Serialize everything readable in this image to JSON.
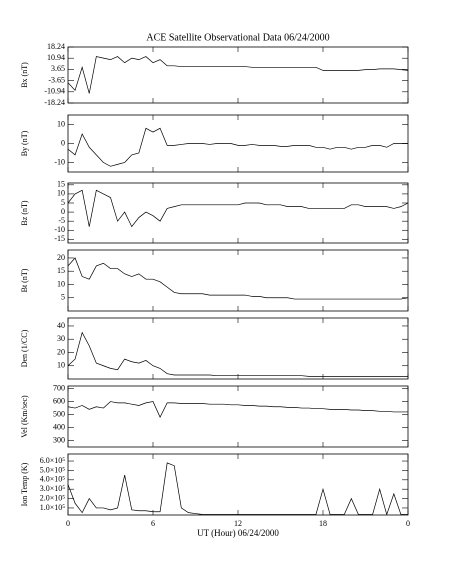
{
  "chart_data": [
    {
      "type": "line",
      "title": "ACE Satellite Observational Data  06/24/2000",
      "ylabel": "Bx (nT)",
      "xlim": [
        0,
        24
      ],
      "x": [
        0,
        0.5,
        1,
        1.5,
        2,
        2.5,
        3,
        3.5,
        4,
        4.5,
        5,
        5.5,
        6,
        6.5,
        7,
        7.5,
        8,
        8.5,
        9,
        9.5,
        10,
        10.5,
        11,
        11.5,
        12,
        12.5,
        13,
        13.5,
        14,
        14.5,
        15,
        15.5,
        16,
        16.5,
        17,
        17.5,
        18,
        18.5,
        19,
        19.5,
        20,
        20.5,
        21,
        21.5,
        22,
        22.5,
        23,
        23.5,
        24
      ],
      "values": [
        -5,
        -10,
        5,
        -12,
        12,
        11,
        10,
        12,
        8,
        11,
        10,
        12,
        8,
        10,
        6,
        6,
        5.5,
        5.5,
        5.5,
        5.5,
        5.5,
        5.5,
        5.5,
        5.5,
        5.5,
        5.5,
        5,
        5,
        5,
        5,
        5,
        5,
        5,
        5,
        5,
        5,
        3,
        3,
        3,
        3,
        3,
        3,
        3.5,
        3.5,
        4,
        4,
        4,
        3.5,
        3
      ],
      "ylim": [
        -18.24,
        18.24
      ],
      "yticks": [
        18.24,
        10.94,
        3.65,
        -3.65,
        -10.94,
        -18.24
      ]
    },
    {
      "type": "line",
      "ylabel": "By (nT)",
      "xlim": [
        0,
        24
      ],
      "x": [
        0,
        0.5,
        1,
        1.5,
        2,
        2.5,
        3,
        3.5,
        4,
        4.5,
        5,
        5.5,
        6,
        6.5,
        7,
        7.5,
        8,
        8.5,
        9,
        9.5,
        10,
        10.5,
        11,
        11.5,
        12,
        12.5,
        13,
        13.5,
        14,
        14.5,
        15,
        15.5,
        16,
        16.5,
        17,
        17.5,
        18,
        18.5,
        19,
        19.5,
        20,
        20.5,
        21,
        21.5,
        22,
        22.5,
        23,
        23.5,
        24
      ],
      "values": [
        -3,
        -6,
        5,
        -2,
        -6,
        -10,
        -12,
        -11,
        -10,
        -6,
        -5,
        8,
        6,
        8,
        -1,
        -1,
        -0.5,
        0,
        0,
        0,
        -0.5,
        0,
        0,
        0,
        -1,
        -1,
        -0.5,
        -1,
        -1,
        -1,
        -1.5,
        -1.5,
        -1,
        -1,
        -1,
        -2,
        -2,
        -3,
        -2,
        -2,
        -3,
        -2,
        -2,
        -1,
        -1,
        -2,
        0,
        0,
        0
      ],
      "ylim": [
        -15,
        15
      ],
      "yticks": [
        10,
        0,
        -10
      ]
    },
    {
      "type": "line",
      "ylabel": "Bz (nT)",
      "xlim": [
        0,
        24
      ],
      "x": [
        0,
        0.5,
        1,
        1.5,
        2,
        2.5,
        3,
        3.5,
        4,
        4.5,
        5,
        5.5,
        6,
        6.5,
        7,
        7.5,
        8,
        8.5,
        9,
        9.5,
        10,
        10.5,
        11,
        11.5,
        12,
        12.5,
        13,
        13.5,
        14,
        14.5,
        15,
        15.5,
        16,
        16.5,
        17,
        17.5,
        18,
        18.5,
        19,
        19.5,
        20,
        20.5,
        21,
        21.5,
        22,
        22.5,
        23,
        23.5,
        24
      ],
      "values": [
        5,
        10,
        12,
        -8,
        12,
        10,
        8,
        -5,
        0,
        -8,
        -3,
        0,
        -2,
        -5,
        2,
        3,
        4,
        4,
        4,
        4,
        4,
        4,
        4,
        4,
        4,
        5,
        5,
        5,
        4,
        4,
        4,
        3,
        3,
        3,
        2,
        2,
        2,
        2,
        2,
        2,
        4,
        4,
        3,
        3,
        3,
        3,
        2,
        3,
        5
      ],
      "ylim": [
        -17,
        16
      ],
      "yticks": [
        15,
        10,
        5,
        0,
        -5,
        -10,
        -15
      ]
    },
    {
      "type": "line",
      "ylabel": "Bt (nT)",
      "xlim": [
        0,
        24
      ],
      "x": [
        0,
        0.5,
        1,
        1.5,
        2,
        2.5,
        3,
        3.5,
        4,
        4.5,
        5,
        5.5,
        6,
        6.5,
        7,
        7.5,
        8,
        8.5,
        9,
        9.5,
        10,
        10.5,
        11,
        11.5,
        12,
        12.5,
        13,
        13.5,
        14,
        14.5,
        15,
        15.5,
        16,
        16.5,
        17,
        17.5,
        18,
        18.5,
        19,
        19.5,
        20,
        20.5,
        21,
        21.5,
        22,
        22.5,
        23,
        23.5,
        24
      ],
      "values": [
        17,
        20,
        13,
        12,
        17,
        18,
        16,
        16,
        14,
        13,
        14,
        12,
        12,
        11,
        9,
        7,
        6.5,
        6.5,
        6.5,
        6.5,
        6,
        6,
        6,
        6,
        6,
        6,
        5.5,
        5.5,
        5,
        5,
        5,
        5,
        4.5,
        4.5,
        4.5,
        4.5,
        4.5,
        4.5,
        4.5,
        4.5,
        4.5,
        4.5,
        4.5,
        4.5,
        4.5,
        4.5,
        4.5,
        4.5,
        5
      ],
      "ylim": [
        0,
        23
      ],
      "yticks": [
        20,
        15,
        10,
        5
      ]
    },
    {
      "type": "line",
      "ylabel": "Den (1/CC)",
      "xlim": [
        0,
        24
      ],
      "x": [
        0,
        0.5,
        1,
        1.5,
        2,
        2.5,
        3,
        3.5,
        4,
        4.5,
        5,
        5.5,
        6,
        6.5,
        7,
        7.5,
        8,
        8.5,
        9,
        9.5,
        10,
        10.5,
        11,
        11.5,
        12,
        12.5,
        13,
        13.5,
        14,
        14.5,
        15,
        15.5,
        16,
        16.5,
        17,
        17.5,
        18,
        18.5,
        19,
        19.5,
        20,
        20.5,
        21,
        21.5,
        22,
        22.5,
        23,
        23.5,
        24
      ],
      "values": [
        10,
        15,
        35,
        25,
        12,
        10,
        8,
        7,
        15,
        13,
        12,
        14,
        10,
        8,
        4,
        3,
        3,
        3,
        3,
        3,
        3,
        2.5,
        2.5,
        2.5,
        2.5,
        2.5,
        2.5,
        2.5,
        2.5,
        2.5,
        2.5,
        2.5,
        2.5,
        2.5,
        2,
        2,
        2,
        2,
        2,
        2,
        2,
        2,
        2,
        2,
        2,
        2,
        2,
        2,
        2
      ],
      "ylim": [
        0,
        46
      ],
      "yticks": [
        40,
        30,
        20,
        10
      ]
    },
    {
      "type": "line",
      "ylabel": "Vel (Km/sec)",
      "xlim": [
        0,
        24
      ],
      "x": [
        0,
        0.5,
        1,
        1.5,
        2,
        2.5,
        3,
        3.5,
        4,
        4.5,
        5,
        5.5,
        6,
        6.5,
        7,
        7.5,
        8,
        8.5,
        9,
        9.5,
        10,
        10.5,
        11,
        11.5,
        12,
        12.5,
        13,
        13.5,
        14,
        14.5,
        15,
        15.5,
        16,
        16.5,
        17,
        17.5,
        18,
        18.5,
        19,
        19.5,
        20,
        20.5,
        21,
        21.5,
        22,
        22.5,
        23,
        23.5,
        24
      ],
      "values": [
        560,
        550,
        570,
        540,
        560,
        550,
        600,
        590,
        590,
        580,
        570,
        590,
        600,
        480,
        590,
        590,
        585,
        585,
        585,
        585,
        580,
        580,
        580,
        575,
        575,
        570,
        570,
        565,
        565,
        560,
        560,
        555,
        555,
        550,
        550,
        545,
        545,
        540,
        540,
        540,
        535,
        535,
        530,
        530,
        525,
        525,
        520,
        520,
        520
      ],
      "ylim": [
        250,
        720
      ],
      "yticks": [
        700,
        600,
        500,
        400,
        300
      ]
    },
    {
      "type": "line",
      "ylabel": "Ion Temp (K)",
      "xlabel": "UT (Hour)  06/24/2000",
      "xlim": [
        0,
        24
      ],
      "xticks": [
        0,
        6,
        12,
        18,
        {
          "value": 24,
          "label": "0"
        }
      ],
      "x": [
        0,
        0.5,
        1,
        1.5,
        2,
        2.5,
        3,
        3.5,
        4,
        4.5,
        5,
        5.5,
        6,
        6.5,
        7,
        7.5,
        8,
        8.5,
        9,
        9.5,
        10,
        10.5,
        11,
        11.5,
        12,
        12.5,
        13,
        13.5,
        14,
        14.5,
        15,
        15.5,
        16,
        16.5,
        17,
        17.5,
        18,
        18.5,
        19,
        19.5,
        20,
        20.5,
        21,
        21.5,
        22,
        22.5,
        23,
        23.5,
        24
      ],
      "values": [
        350000,
        150000,
        50000,
        200000,
        100000,
        100000,
        80000,
        100000,
        450000,
        80000,
        70000,
        70000,
        60000,
        60000,
        580000,
        550000,
        100000,
        50000,
        40000,
        30000,
        30000,
        30000,
        30000,
        30000,
        30000,
        30000,
        30000,
        30000,
        30000,
        30000,
        30000,
        30000,
        30000,
        30000,
        30000,
        30000,
        300000,
        30000,
        30000,
        30000,
        200000,
        30000,
        30000,
        30000,
        300000,
        30000,
        250000,
        30000,
        30000
      ],
      "ylim": [
        25000,
        675000
      ],
      "yticks": [
        {
          "value": 600000,
          "label": "6.0×10⁵"
        },
        {
          "value": 500000,
          "label": "5.0×10⁵"
        },
        {
          "value": 400000,
          "label": "4.0×10⁵"
        },
        {
          "value": 300000,
          "label": "3.0×10⁵"
        },
        {
          "value": 200000,
          "label": "2.0×10⁵"
        },
        {
          "value": 100000,
          "label": "1.0×10⁵"
        }
      ]
    }
  ]
}
